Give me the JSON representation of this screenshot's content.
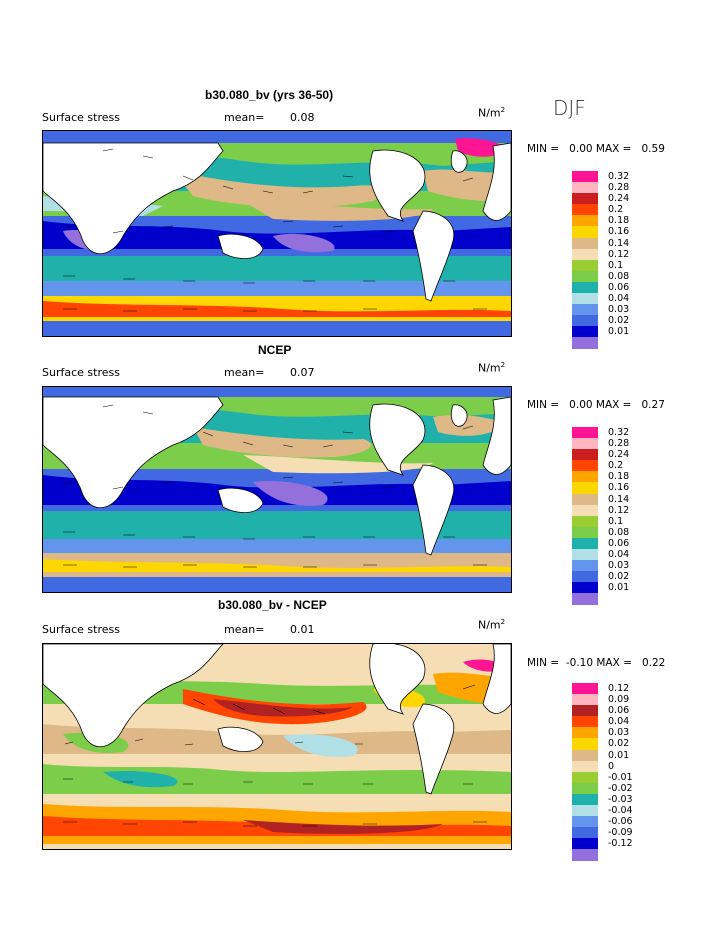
{
  "season": "DJF",
  "units": "N/m",
  "units_exp": "2",
  "panels": [
    {
      "title": "b30.080_bv (yrs 36-50)",
      "field": "Surface stress",
      "mean_label": "mean=",
      "mean_value": "0.08",
      "min_label": "MIN =",
      "min_value": "0.00",
      "max_label": "MAX =",
      "max_value": "0.59",
      "legend": [
        {
          "label": "0.32",
          "color": "#ff1493"
        },
        {
          "label": "0.28",
          "color": "#ffb6c1"
        },
        {
          "label": "0.24",
          "color": "#c81e1e"
        },
        {
          "label": "0.2",
          "color": "#ff4500"
        },
        {
          "label": "0.18",
          "color": "#ffa500"
        },
        {
          "label": "0.16",
          "color": "#ffd700"
        },
        {
          "label": "0.14",
          "color": "#deb887"
        },
        {
          "label": "0.12",
          "color": "#f5deb3"
        },
        {
          "label": "0.1",
          "color": "#9acd32"
        },
        {
          "label": "0.08",
          "color": "#7ccd4a"
        },
        {
          "label": "0.06",
          "color": "#20b2aa"
        },
        {
          "label": "0.04",
          "color": "#b0e0e6"
        },
        {
          "label": "0.03",
          "color": "#6495ed"
        },
        {
          "label": "0.02",
          "color": "#4169e1"
        },
        {
          "label": "0.01",
          "color": "#0000cd"
        },
        {
          "label": "",
          "color": "#9370db"
        }
      ]
    },
    {
      "title": "NCEP",
      "field": "Surface stress",
      "mean_label": "mean=",
      "mean_value": "0.07",
      "min_label": "MIN =",
      "min_value": "0.00",
      "max_label": "MAX =",
      "max_value": "0.27",
      "legend": [
        {
          "label": "0.32",
          "color": "#ff1493"
        },
        {
          "label": "0.28",
          "color": "#ffb6c1"
        },
        {
          "label": "0.24",
          "color": "#c81e1e"
        },
        {
          "label": "0.2",
          "color": "#ff4500"
        },
        {
          "label": "0.18",
          "color": "#ffa500"
        },
        {
          "label": "0.16",
          "color": "#ffd700"
        },
        {
          "label": "0.14",
          "color": "#deb887"
        },
        {
          "label": "0.12",
          "color": "#f5deb3"
        },
        {
          "label": "0.1",
          "color": "#9acd32"
        },
        {
          "label": "0.08",
          "color": "#7ccd4a"
        },
        {
          "label": "0.06",
          "color": "#20b2aa"
        },
        {
          "label": "0.04",
          "color": "#b0e0e6"
        },
        {
          "label": "0.03",
          "color": "#6495ed"
        },
        {
          "label": "0.02",
          "color": "#4169e1"
        },
        {
          "label": "0.01",
          "color": "#0000cd"
        },
        {
          "label": "",
          "color": "#9370db"
        }
      ]
    },
    {
      "title": "b30.080_bv - NCEP",
      "field": "Surface stress",
      "mean_label": "mean=",
      "mean_value": "0.01",
      "min_label": "MIN =",
      "min_value": "-0.10",
      "max_label": "MAX =",
      "max_value": "0.22",
      "legend": [
        {
          "label": "0.12",
          "color": "#ff1493"
        },
        {
          "label": "0.09",
          "color": "#ffb6c1"
        },
        {
          "label": "0.06",
          "color": "#b22222"
        },
        {
          "label": "0.04",
          "color": "#ff4500"
        },
        {
          "label": "0.03",
          "color": "#ffa500"
        },
        {
          "label": "0.02",
          "color": "#ffd700"
        },
        {
          "label": "0.01",
          "color": "#deb887"
        },
        {
          "label": "0",
          "color": "#f5deb3"
        },
        {
          "label": "-0.01",
          "color": "#9acd32"
        },
        {
          "label": "-0.02",
          "color": "#7ccd4a"
        },
        {
          "label": "-0.03",
          "color": "#20b2aa"
        },
        {
          "label": "-0.04",
          "color": "#b0e0e6"
        },
        {
          "label": "-0.06",
          "color": "#6495ed"
        },
        {
          "label": "-0.09",
          "color": "#4169e1"
        },
        {
          "label": "-0.12",
          "color": "#0000cd"
        },
        {
          "label": "",
          "color": "#9370db"
        }
      ]
    }
  ]
}
